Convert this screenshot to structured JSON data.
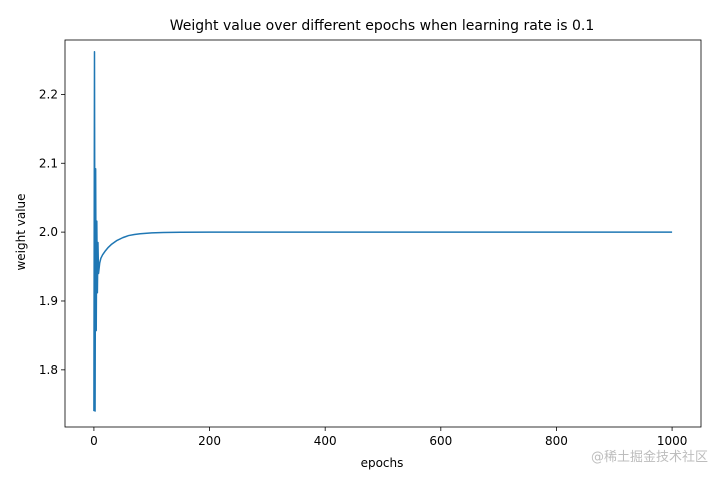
{
  "chart_data": {
    "type": "line",
    "title": "Weight value over different epochs when learning rate is 0.1",
    "xlabel": "epochs",
    "ylabel": "weight value",
    "xlim": [
      -50,
      1050
    ],
    "ylim": [
      1.717,
      2.279
    ],
    "xticks": [
      0,
      200,
      400,
      600,
      800,
      1000
    ],
    "xtick_labels": [
      "0",
      "200",
      "400",
      "600",
      "800",
      "1000"
    ],
    "yticks": [
      1.8,
      1.9,
      2.0,
      2.1,
      2.2
    ],
    "ytick_labels": [
      "1.8",
      "1.9",
      "2.0",
      "2.1",
      "2.2"
    ],
    "grid": false,
    "legend": false,
    "series": [
      {
        "color": "#1f77b4",
        "x": [
          0,
          1,
          2,
          3,
          4,
          5,
          6,
          7,
          8,
          10,
          12,
          15,
          20,
          25,
          30,
          40,
          50,
          60,
          70,
          80,
          100,
          120,
          150,
          200,
          300,
          400,
          500,
          600,
          700,
          800,
          900,
          1000
        ],
        "y": [
          1.74,
          2.262,
          1.74,
          2.092,
          1.857,
          2.016,
          1.912,
          1.985,
          1.94,
          1.955,
          1.962,
          1.967,
          1.973,
          1.978,
          1.982,
          1.988,
          1.992,
          1.995,
          1.9965,
          1.9976,
          1.9989,
          1.9995,
          1.9998,
          1.99995,
          2.0,
          2.0,
          2.0,
          2.0,
          2.0,
          2.0,
          2.0,
          2.0
        ]
      }
    ]
  },
  "watermark": "@稀土掘金技术社区"
}
